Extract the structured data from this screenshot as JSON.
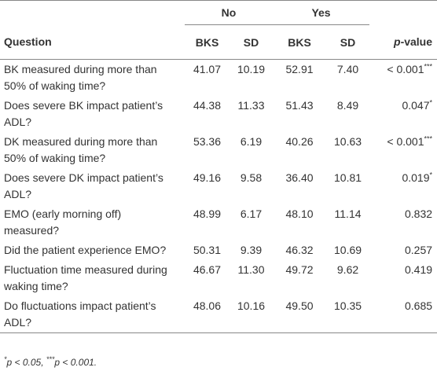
{
  "table": {
    "groups": [
      "No",
      "Yes"
    ],
    "header": {
      "question": "Question",
      "no_bks": "BKS",
      "no_sd": "SD",
      "yes_bks": "BKS",
      "yes_sd": "SD",
      "p_italic": "p",
      "p_rest": "-value"
    },
    "rows": [
      {
        "question": "BK measured during more than 50% of waking time?",
        "no_bks": "41.07",
        "no_sd": "10.19",
        "yes_bks": "52.91",
        "yes_sd": "7.40",
        "p_value": "< 0.001",
        "sig": "***"
      },
      {
        "question": "Does severe BK impact patient’s ADL?",
        "no_bks": "44.38",
        "no_sd": "11.33",
        "yes_bks": "51.43",
        "yes_sd": "8.49",
        "p_value": "0.047",
        "sig": "*"
      },
      {
        "question": "DK measured during more than 50% of waking time?",
        "no_bks": "53.36",
        "no_sd": "6.19",
        "yes_bks": "40.26",
        "yes_sd": "10.63",
        "p_value": "< 0.001",
        "sig": "***"
      },
      {
        "question": "Does severe DK impact patient’s ADL?",
        "no_bks": "49.16",
        "no_sd": "9.58",
        "yes_bks": "36.40",
        "yes_sd": "10.81",
        "p_value": "0.019",
        "sig": "*"
      },
      {
        "question": "EMO (early morning off) measured?",
        "no_bks": "48.99",
        "no_sd": "6.17",
        "yes_bks": "48.10",
        "yes_sd": "11.14",
        "p_value": "0.832"
      },
      {
        "question": "Did the patient experience EMO?",
        "no_bks": "50.31",
        "no_sd": "9.39",
        "yes_bks": "46.32",
        "yes_sd": "10.69",
        "p_value": "0.257"
      },
      {
        "question": "Fluctuation time measured during waking time?",
        "no_bks": "46.67",
        "no_sd": "11.30",
        "yes_bks": "49.72",
        "yes_sd": "9.62",
        "p_value": "0.419"
      },
      {
        "question": "Do fluctuations impact patient’s ADL?",
        "no_bks": "48.06",
        "no_sd": "10.16",
        "yes_bks": "49.50",
        "yes_sd": "10.35",
        "p_value": "0.685"
      }
    ],
    "footnote": [
      {
        "text": "*",
        "sup": true
      },
      {
        "text": "p < 0.05, "
      },
      {
        "text": "***",
        "sup": true
      },
      {
        "text": "p < 0.001."
      }
    ]
  }
}
